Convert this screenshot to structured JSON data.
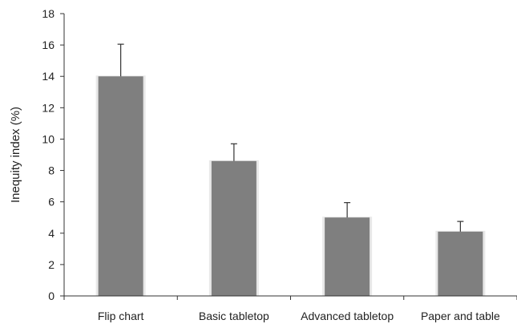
{
  "chart_data": {
    "type": "bar",
    "title": "",
    "xlabel": "",
    "ylabel": "Inequity index (%)",
    "categories": [
      "Flip chart",
      "Basic tabletop",
      "Advanced tabletop",
      "Paper and table"
    ],
    "values": [
      14.0,
      8.6,
      5.0,
      4.1
    ],
    "error_upper": [
      2.05,
      1.1,
      0.95,
      0.65
    ],
    "ylim": [
      0,
      18
    ],
    "yticks": [
      0,
      2,
      4,
      6,
      8,
      10,
      12,
      14,
      16,
      18
    ],
    "grid": false,
    "legend": "none",
    "colors": {
      "bar": "#7f7f7f",
      "bar_shadow": "#d9d9d9",
      "axis": "#333333",
      "error": "#333333"
    }
  }
}
